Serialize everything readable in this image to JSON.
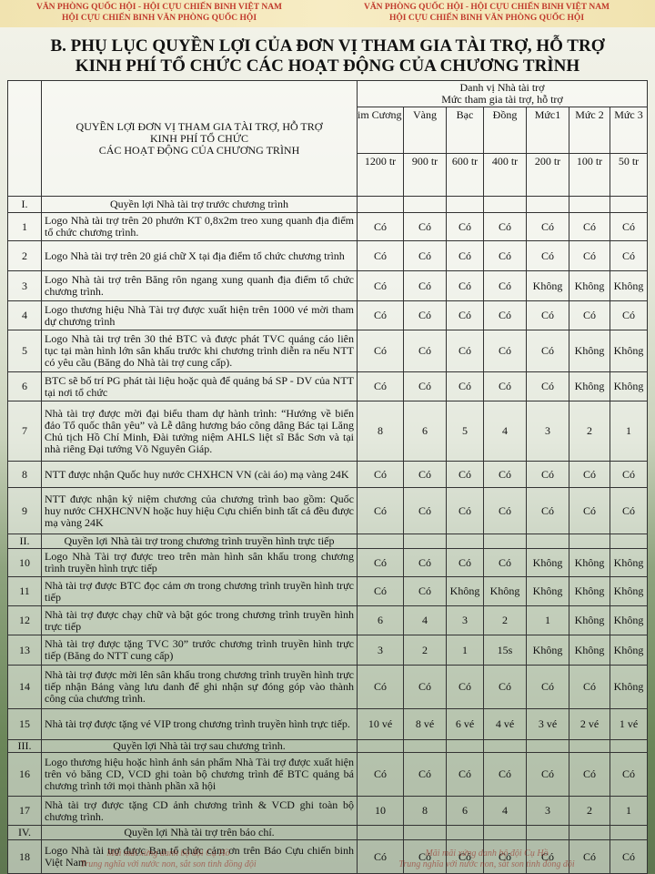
{
  "header": {
    "lines": [
      "VĂN PHÒNG QUỐC HỘI - HỘI CỰU CHIẾN BINH VIỆT NAM",
      "HỘI CỰU CHIẾN BINH VĂN PHÒNG QUỐC HỘI"
    ]
  },
  "title": [
    "B. PHỤ LỤC QUYỀN LỢI CỦA ĐƠN VỊ THAM GIA TÀI TRỢ, HỖ TRỢ",
    "KINH PHÍ TỔ CHỨC CÁC HOẠT ĐỘNG CỦA CHƯƠNG TRÌNH"
  ],
  "table": {
    "header": {
      "benefit_lines": [
        "QUYỀN LỢI ĐƠN VỊ THAM GIA TÀI TRỢ, HỖ TRỢ",
        "KINH  PHÍ TỔ CHỨC",
        "CÁC HOẠT ĐỘNG CỦA CHƯƠNG TRÌNH"
      ],
      "group_lines": [
        "Danh vị Nhà tài trợ",
        "Mức tham gia tài trợ, hỗ trợ"
      ],
      "levels": [
        "im Cương",
        "Vàng",
        "Bạc",
        "Đồng",
        "Mức1",
        "Mức 2",
        "Mức 3"
      ],
      "amounts": [
        "1200 tr",
        "900 tr",
        "600 tr",
        "400 tr",
        "200 tr",
        "100 tr",
        "50 tr"
      ]
    },
    "rows": [
      {
        "no": "I.",
        "text": "Quyền lợi Nhà tài trợ trước chương trình"
      },
      {
        "no": "1",
        "text": "Logo Nhà tài trợ trên 20 phướn KT 0,8x2m treo xung quanh địa điểm tổ chức chương trình.",
        "values": [
          "Có",
          "Có",
          "Có",
          "Có",
          "Có",
          "Có",
          "Có"
        ]
      },
      {
        "no": "2",
        "text": "Logo Nhà tài trợ trên 20 giá chữ X tại địa điểm tổ chức chương trình",
        "values": [
          "Có",
          "Có",
          "Có",
          "Có",
          "Có",
          "Có",
          "Có"
        ]
      },
      {
        "no": "3",
        "text": "Logo Nhà tài trợ trên Băng rôn ngang xung quanh địa điểm tổ chức chương trình.",
        "values": [
          "Có",
          "Có",
          "Có",
          "Có",
          "Không",
          "Không",
          "Không"
        ]
      },
      {
        "no": "4",
        "text": "Logo thương hiệu Nhà Tài trợ được xuất hiện trên 1000 vé mời tham dự chương trình",
        "values": [
          "Có",
          "Có",
          "Có",
          "Có",
          "Có",
          "Có",
          "Có"
        ]
      },
      {
        "no": "5",
        "text": "Logo Nhà tài trợ trên 30 thẻ BTC và được phát TVC quảng cáo liên tục tại màn hình lớn sân khấu trước khi chương trình diễn ra nếu NTT có yêu cầu (Băng do Nhà tài trợ cung cấp).",
        "values": [
          "Có",
          "Có",
          "Có",
          "Có",
          "Có",
          "Không",
          "Không"
        ]
      },
      {
        "no": "6",
        "text": "BTC sẽ bố trí PG phát tài liệu hoặc quà để quảng bá SP - DV của NTT tại nơi tổ chức",
        "values": [
          "Có",
          "Có",
          "Có",
          "Có",
          "Có",
          "Không",
          "Không"
        ]
      },
      {
        "no": "7",
        "text": "Nhà tài trợ được mời đại biểu tham dự hành trình: “Hướng về biển đảo Tổ quốc thân yêu” và Lễ dâng hương báo công dâng Bác tại Lăng Chủ tịch Hồ Chí Minh, Đài tưởng niệm AHLS liệt sĩ Bắc Sơn và tại nhà riêng Đại tướng Võ Nguyên Giáp.",
        "values": [
          "8",
          "6",
          "5",
          "4",
          "3",
          "2",
          "1"
        ]
      },
      {
        "no": "8",
        "text": "NTT được nhận Quốc huy nước CHXHCN VN (cài áo) mạ vàng 24K",
        "values": [
          "Có",
          "Có",
          "Có",
          "Có",
          "Có",
          "Có",
          "Có"
        ]
      },
      {
        "no": "9",
        "text": "NTT được nhận kỷ niệm chương của chương trình bao gồm: Quốc huy nước CHXHCNVN hoặc huy hiệu Cựu chiến binh tất cả đều được mạ vàng 24K",
        "values": [
          "Có",
          "Có",
          "Có",
          "Có",
          "Có",
          "Có",
          "Có"
        ]
      },
      {
        "no": "II.",
        "text": "Quyền lợi Nhà tài trợ trong chương trình truyền hình trực tiếp"
      },
      {
        "no": "10",
        "text": "Logo Nhà Tài trợ được treo trên màn hình sân khấu trong chương trình truyền hình trực tiếp",
        "values": [
          "Có",
          "Có",
          "Có",
          "Có",
          "Không",
          "Không",
          "Không"
        ]
      },
      {
        "no": "11",
        "text": "Nhà tài trợ được BTC đọc cảm ơn trong chương trình truyền hình trực tiếp",
        "values": [
          "Có",
          "Có",
          "Không",
          "Không",
          "Không",
          "Không",
          "Không"
        ]
      },
      {
        "no": "12",
        "text": "Nhà tài trợ được chạy chữ và bật góc trong chương trình truyền hình trực tiếp",
        "values": [
          "6",
          "4",
          "3",
          "2",
          "1",
          "Không",
          "Không"
        ]
      },
      {
        "no": "13",
        "text": "Nhà tài trợ được tặng TVC 30” trước chương trình truyền hình trực tiếp (Băng do NTT cung cấp)",
        "values": [
          "3",
          "2",
          "1",
          "15s",
          "Không",
          "Không",
          "Không"
        ]
      },
      {
        "no": "14",
        "text": "Nhà tài trợ được mời lên sân khấu trong chương trình truyền hình trực tiếp nhận Bảng vàng lưu danh để ghi nhận sự đóng góp vào thành công của chương trình.",
        "values": [
          "Có",
          "Có",
          "Có",
          "Có",
          "Có",
          "Có",
          "Không"
        ]
      },
      {
        "no": "15",
        "text": "Nhà tài trợ được tặng vé VIP trong chương trình truyền hình trực tiếp.",
        "values": [
          "10 vé",
          "8 vé",
          "6 vé",
          "4 vé",
          "3 vé",
          "2 vé",
          "1 vé"
        ]
      },
      {
        "no": "III.",
        "text": "Quyền lợi Nhà tài trợ sau chương trình."
      },
      {
        "no": "16",
        "text": "Logo thương hiệu hoặc hình ảnh sản phẩm Nhà Tài trợ được xuất hiện trên vỏ băng CD, VCD ghi toàn bộ chương trình để BTC quảng bá chương trình tới mọi thành phần xã hội",
        "values": [
          "Có",
          "Có",
          "Có",
          "Có",
          "Có",
          "Có",
          "Có"
        ]
      },
      {
        "no": "17",
        "text": "Nhà tài trợ được tặng CD ảnh chương trình & VCD ghi toàn bộ chương trình.",
        "values": [
          "10",
          "8",
          "6",
          "4",
          "3",
          "2",
          "1"
        ]
      },
      {
        "no": "IV.",
        "text": "Quyền lợi Nhà tài trợ trên báo chí."
      },
      {
        "no": "18",
        "text": "Logo Nhà tài trợ được Ban tổ chức cảm ơn trên Báo Cựu chiến binh Việt Nam",
        "values": [
          "Có",
          "Có",
          "Có",
          "Có",
          "Có",
          "Có",
          "Có"
        ]
      }
    ]
  },
  "footer": [
    "Mãi mãi xứng danh bộ đội Cụ Hồ",
    "Trung nghĩa với nước non, sắt son tình đồng đội"
  ]
}
